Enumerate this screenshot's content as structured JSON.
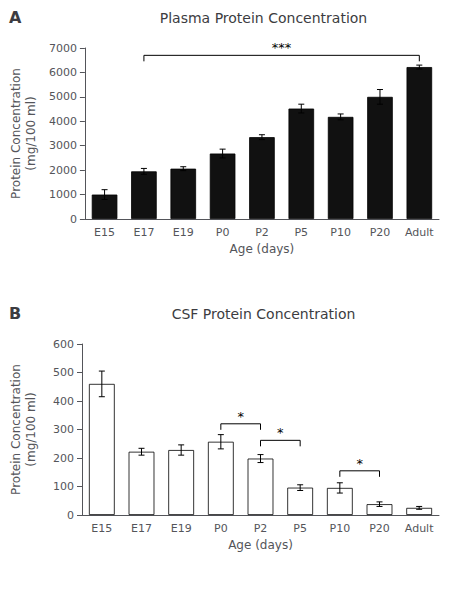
{
  "chart_data": [
    {
      "type": "bar",
      "panel_label": "A",
      "title": "Plasma Protein Concentration",
      "categories": [
        "E15",
        "E17",
        "E19",
        "P0",
        "P2",
        "P5",
        "P10",
        "P20",
        "Adult"
      ],
      "values": [
        1000,
        1950,
        2060,
        2680,
        3350,
        4520,
        4180,
        5000,
        6220
      ],
      "errors": [
        200,
        120,
        80,
        180,
        100,
        180,
        120,
        300,
        80
      ],
      "ylabel": "Protein Concentration\n(mg/100 ml)",
      "xlabel": "Age (days)",
      "ylim": [
        0,
        7000
      ],
      "yticks": [
        0,
        1000,
        2000,
        3000,
        4000,
        5000,
        6000,
        7000
      ],
      "color": "#111111",
      "grid": false,
      "annotations": [
        {
          "text": "***",
          "from": "E17",
          "to": "Adult",
          "y": 6700
        }
      ]
    },
    {
      "type": "bar",
      "panel_label": "B",
      "title": "CSF Protein Concentration",
      "categories": [
        "E15",
        "E17",
        "E19",
        "P0",
        "P2",
        "P5",
        "P10",
        "P20",
        "Adult"
      ],
      "values": [
        460,
        222,
        228,
        257,
        198,
        96,
        95,
        38,
        25
      ],
      "errors": [
        45,
        12,
        18,
        25,
        14,
        10,
        18,
        8,
        5
      ],
      "ylabel": "Protein Concentration\n(mg/100 ml)",
      "xlabel": "Age (days)",
      "ylim": [
        0,
        600
      ],
      "yticks": [
        0,
        100,
        200,
        300,
        400,
        500,
        600
      ],
      "color": "#ffffff",
      "grid": false,
      "annotations": [
        {
          "text": "*",
          "from": "P0",
          "to": "P2",
          "y": 320
        },
        {
          "text": "*",
          "from": "P2",
          "to": "P5",
          "y": 262
        },
        {
          "text": "*",
          "from": "P10",
          "to": "P20",
          "y": 155
        }
      ]
    }
  ]
}
